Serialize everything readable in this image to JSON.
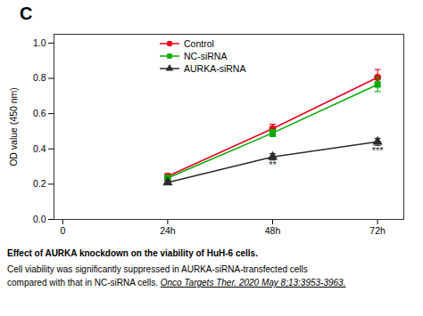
{
  "chart_data": {
    "type": "line",
    "title": "C",
    "ylabel": "OD value (450 nm)",
    "x": [
      24,
      48,
      72
    ],
    "xlim": [
      -2,
      78
    ],
    "xticks": [
      0,
      {
        "value": 24,
        "label": "24h"
      },
      {
        "value": 48,
        "label": "48h"
      },
      {
        "value": 72,
        "label": "72h"
      }
    ],
    "ylim": [
      0.0,
      1.05
    ],
    "yticks": [
      {
        "value": 0.0,
        "label": "0.0"
      },
      0.2,
      0.4,
      0.6,
      0.8,
      {
        "value": 1.0,
        "label": "1.0"
      }
    ],
    "grid": false,
    "legend": "upper left",
    "series": [
      {
        "name": "Control",
        "color": "#e8001c",
        "marker": "circle",
        "values": [
          0.245,
          0.515,
          0.805
        ],
        "yerr": [
          0.015,
          0.025,
          0.045
        ]
      },
      {
        "name": "NC-siRNA",
        "color": "#00aa00",
        "marker": "square",
        "values": [
          0.235,
          0.49,
          0.765
        ],
        "yerr": [
          0.015,
          0.02,
          0.04
        ]
      },
      {
        "name": "AURKA-siRNA",
        "color": "#2b2b2b",
        "marker": "triangle",
        "values": [
          0.21,
          0.355,
          0.44
        ],
        "yerr": [
          0.012,
          0.018,
          0.02
        ]
      }
    ],
    "annotations": [
      {
        "text": "**",
        "x": 48,
        "y": 0.328
      },
      {
        "text": "***",
        "x": 72,
        "y": 0.412
      }
    ],
    "caption": [
      "Effect of AURKA knockdown on the viability of HuH-6 cells.",
      "Cell viability was significantly suppressed in AURKA-siRNA-transfected cells",
      "compared with that in NC-siRNA cells. ",
      "Onco Targets Ther. 2020 May 8;13:3953-3963."
    ]
  }
}
